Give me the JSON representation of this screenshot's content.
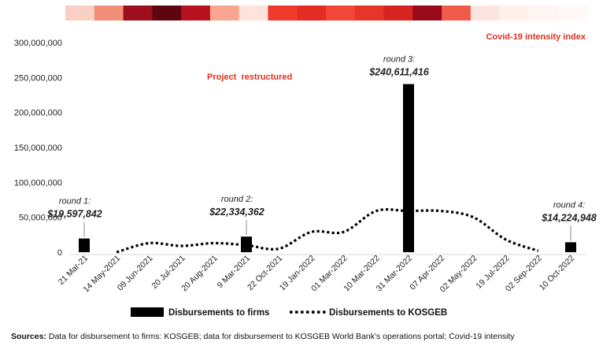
{
  "chart_data": {
    "type": "bar",
    "title": "",
    "xlabel": "",
    "ylabel": "",
    "ylim": [
      0,
      300000000
    ],
    "yticks": [
      "0",
      "50,000,000",
      "100,000,000",
      "150,000,000",
      "200,000,000",
      "250,000,000",
      "300,000,000"
    ],
    "yticks_values": [
      0,
      50000000,
      100000000,
      150000000,
      200000000,
      250000000,
      300000000
    ],
    "categories": [
      "21 Mar-21",
      "14 May-2021",
      "09 Jun-2021",
      "20 Jul-2021",
      "20 Aug-2021",
      "9 Mar-2021",
      "22 Oct-2021",
      "19 Jan-2022",
      "01 Mar-2022",
      "10 Mar-2022",
      "31 Mar-2022",
      "07 Apr-2022",
      "02 May-2022",
      "19 Jul-2022",
      "02 Sep-2022",
      "10 Oct-2022"
    ],
    "series": [
      {
        "name": "Disbursements to firms",
        "kind": "bar",
        "color": "#000000",
        "values": [
          19597842,
          null,
          null,
          null,
          null,
          22334362,
          null,
          null,
          null,
          null,
          240611416,
          null,
          null,
          null,
          null,
          14224948
        ]
      },
      {
        "name": "Disbursements to KOSGEB",
        "kind": "dotted-line",
        "color": "#000000",
        "values": [
          null,
          0,
          13000000,
          9000000,
          13000000,
          10000000,
          5000000,
          29000000,
          29000000,
          59000000,
          59000000,
          59000000,
          50000000,
          18000000,
          2000000,
          null
        ]
      }
    ],
    "annotations": [
      {
        "category": "21 Mar-21",
        "label": "round 1:",
        "value_text": "$19,597,842"
      },
      {
        "category": "9 Mar-2021",
        "label": "round 2:",
        "value_text": "$22,334,362"
      },
      {
        "category": "31 Mar-2022",
        "label": "round 3:",
        "value_text": "$240,611,416"
      },
      {
        "category": "10 Oct-2022",
        "label": "round 4:",
        "value_text": "$14,224,948"
      }
    ],
    "notes": {
      "covid": "Covid-19 intensity index",
      "restructure": "Project  restructured"
    },
    "intensity_band": {
      "colors": [
        "#fbd0c4",
        "#f28f78",
        "#9e0e1c",
        "#5e0610",
        "#b7101e",
        "#f9a58f",
        "#fde3db",
        "#ef3b2c",
        "#e32d24",
        "#f14638",
        "#e7352a",
        "#d62520",
        "#98091a",
        "#f15b4a",
        "#fde5df",
        "#fff0ec",
        "#fff5f2",
        "#fff8f6"
      ]
    },
    "legend": {
      "placement": "bottom"
    },
    "grid": false
  },
  "sources": {
    "label": "Sources:",
    "text": " Data for disbursement to firms: KOSGEB; data for disbursement to KOSGEB World Bank's operations portal; Covid-19 intensity"
  }
}
